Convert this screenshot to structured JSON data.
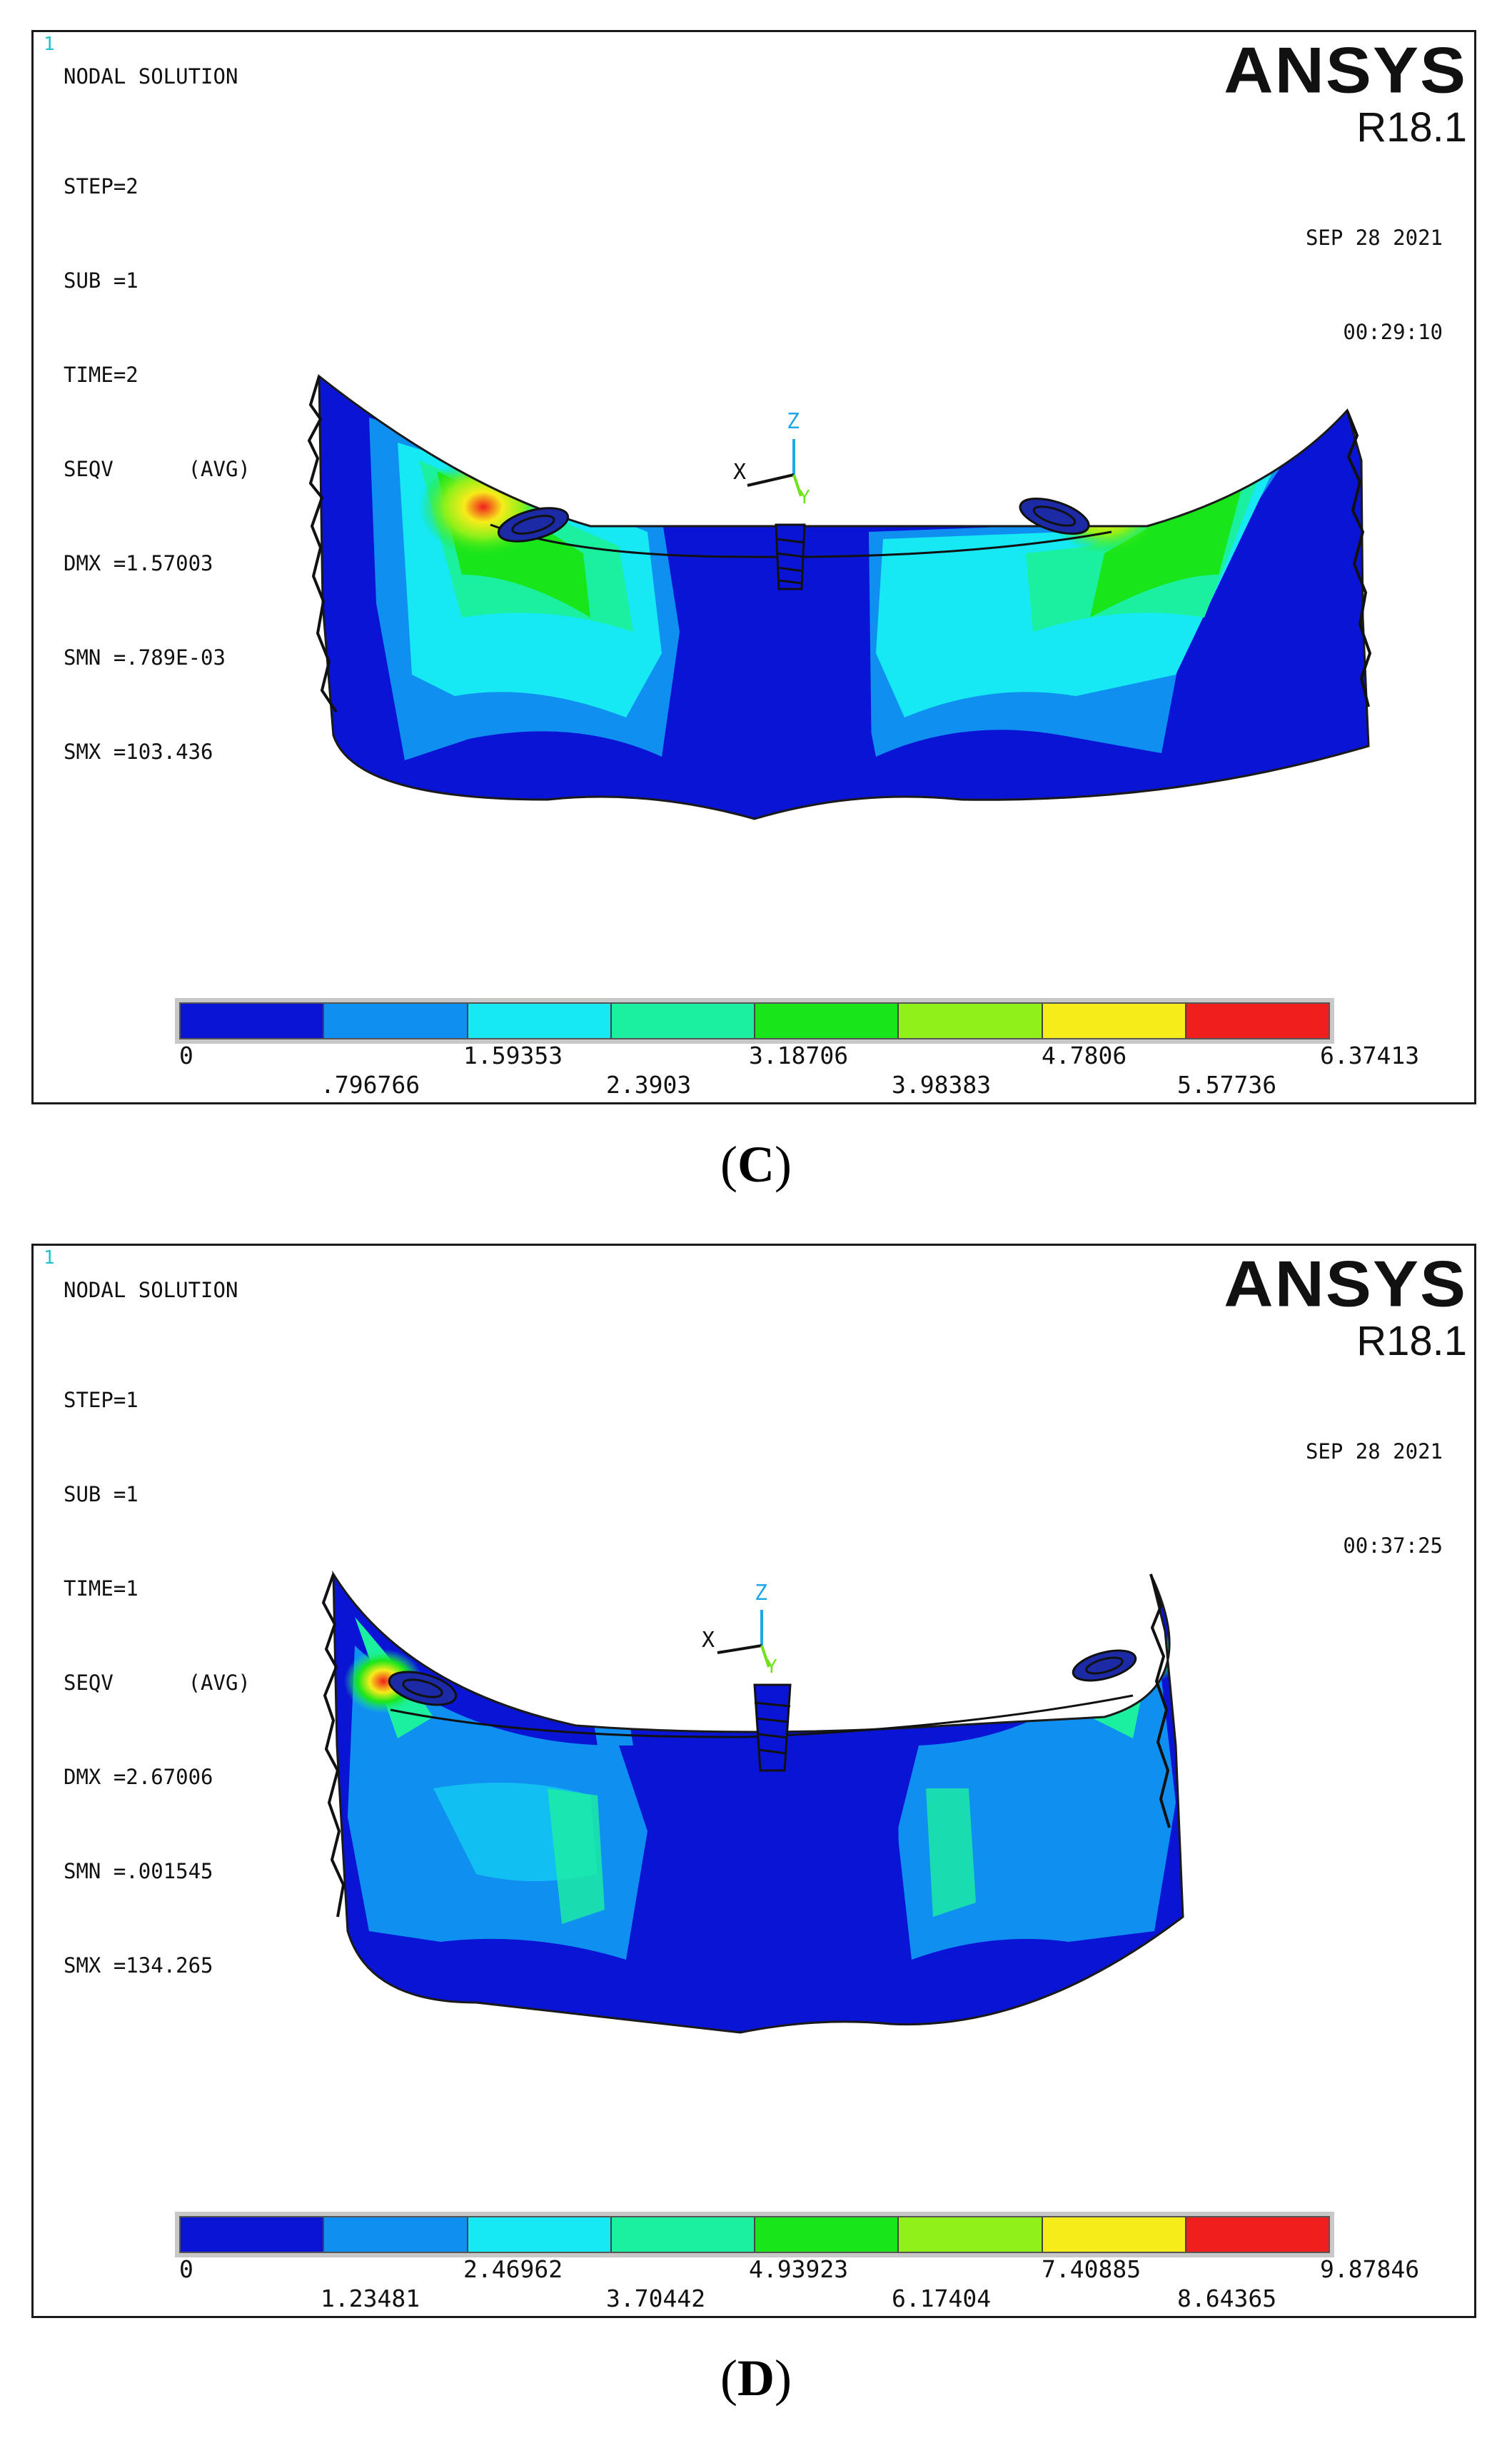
{
  "panels": [
    {
      "window_number": "1",
      "header": "NODAL SOLUTION",
      "info_lines": [
        "STEP=2",
        "SUB =1",
        "TIME=2",
        "SEQV      (AVG)",
        "DMX =1.57003",
        "SMN =.789E-03",
        "SMX =103.436"
      ],
      "logo": {
        "brand": "ANSYS",
        "version": "R18.1"
      },
      "date": "SEP 28 2021",
      "time": "00:29:10",
      "triad": {
        "x": "X",
        "y": "Y",
        "z": "Z"
      },
      "legend": {
        "colors": [
          "#0a14d4",
          "#0f8ff0",
          "#16e8f4",
          "#1bf0a0",
          "#19e61a",
          "#8ff01a",
          "#f6ec1a",
          "#f11e1e"
        ],
        "top_labels": [
          "0",
          "1.59353",
          "3.18706",
          "4.7806",
          "6.37413"
        ],
        "bottom_labels": [
          ".796766",
          "2.3903",
          "3.98383",
          "5.57736"
        ]
      },
      "caption_letter": "C"
    },
    {
      "window_number": "1",
      "header": "NODAL SOLUTION",
      "info_lines": [
        "STEP=1",
        "SUB =1",
        "TIME=1",
        "SEQV      (AVG)",
        "DMX =2.67006",
        "SMN =.001545",
        "SMX =134.265"
      ],
      "logo": {
        "brand": "ANSYS",
        "version": "R18.1"
      },
      "date": "SEP 28 2021",
      "time": "00:37:25",
      "triad": {
        "x": "X",
        "y": "Y",
        "z": "Z"
      },
      "legend": {
        "colors": [
          "#0a14d4",
          "#0f8ff0",
          "#16e8f4",
          "#1bf0a0",
          "#19e61a",
          "#8ff01a",
          "#f6ec1a",
          "#f11e1e"
        ],
        "top_labels": [
          "0",
          "2.46962",
          "4.93923",
          "7.40885",
          "9.87846"
        ],
        "bottom_labels": [
          "1.23481",
          "3.70442",
          "6.17404",
          "8.64365"
        ]
      },
      "caption_letter": "D"
    }
  ],
  "caption_paren_open": "(",
  "caption_paren_close": ")"
}
